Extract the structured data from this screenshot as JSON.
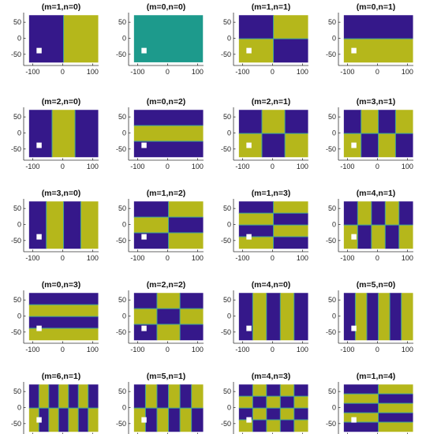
{
  "chart_data": {
    "type": "heatmap",
    "description_free": true,
    "layout": {
      "rows": 5,
      "cols": 4
    },
    "xlim": [
      -130,
      120
    ],
    "ylim": [
      -85,
      80
    ],
    "xticks": [
      -100,
      0,
      100
    ],
    "yticks": [
      50,
      0,
      -50
    ],
    "xtick_labels": [
      "-100",
      "0",
      "100"
    ],
    "ytick_labels": [
      "50",
      "0",
      "-50"
    ],
    "colors": {
      "low": "#35188a",
      "high": "#b5b71b",
      "uniform": "#1d9a8c",
      "boundary": "#3fa39a",
      "hole": "#ffffff"
    },
    "hole": {
      "x": [
        -87,
        -70
      ],
      "y": [
        -47,
        -30
      ]
    },
    "panels": [
      {
        "title": "(m=1,n=0)",
        "m": 1,
        "n": 0
      },
      {
        "title": "(m=0,n=0)",
        "m": 0,
        "n": 0
      },
      {
        "title": "(m=1,n=1)",
        "m": 1,
        "n": 1
      },
      {
        "title": "(m=0,n=1)",
        "m": 0,
        "n": 1
      },
      {
        "title": "(m=2,n=0)",
        "m": 2,
        "n": 0
      },
      {
        "title": "(m=0,n=2)",
        "m": 0,
        "n": 2
      },
      {
        "title": "(m=2,n=1)",
        "m": 2,
        "n": 1
      },
      {
        "title": "(m=3,n=1)",
        "m": 3,
        "n": 1
      },
      {
        "title": "(m=3,n=0)",
        "m": 3,
        "n": 0
      },
      {
        "title": "(m=1,n=2)",
        "m": 1,
        "n": 2
      },
      {
        "title": "(m=1,n=3)",
        "m": 1,
        "n": 3
      },
      {
        "title": "(m=4,n=1)",
        "m": 4,
        "n": 1
      },
      {
        "title": "(m=0,n=3)",
        "m": 0,
        "n": 3
      },
      {
        "title": "(m=2,n=2)",
        "m": 2,
        "n": 2
      },
      {
        "title": "(m=4,n=0)",
        "m": 4,
        "n": 0
      },
      {
        "title": "(m=5,n=0)",
        "m": 5,
        "n": 0
      },
      {
        "title": "(m=6,n=1)",
        "m": 6,
        "n": 1
      },
      {
        "title": "(m=5,n=1)",
        "m": 5,
        "n": 1
      },
      {
        "title": "(m=4,n=3)",
        "m": 4,
        "n": 3
      },
      {
        "title": "(m=1,n=4)",
        "m": 1,
        "n": 4
      }
    ]
  }
}
